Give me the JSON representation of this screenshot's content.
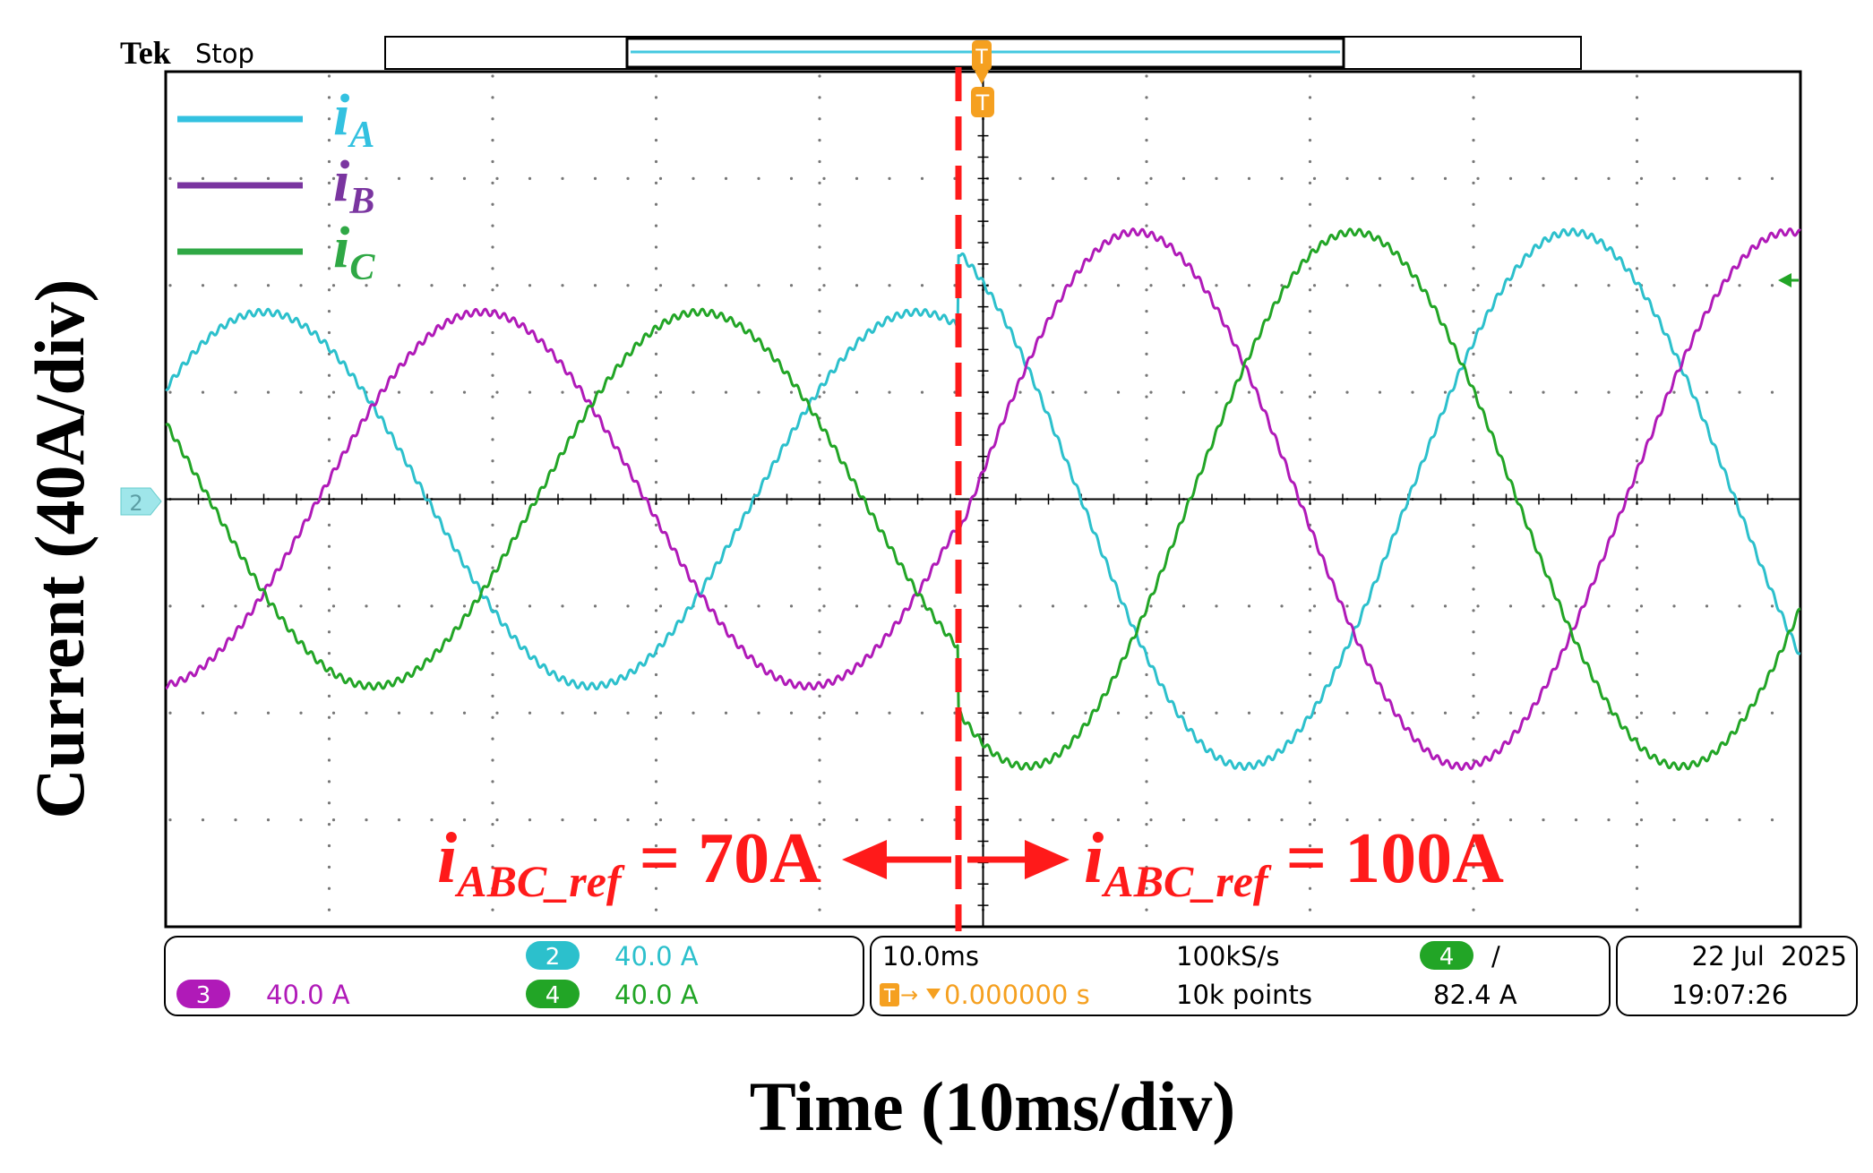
{
  "header": {
    "brand": "Tek",
    "status": "Stop"
  },
  "labels": {
    "y_axis": "Current (40A/div)",
    "x_axis": "Time (10ms/div)",
    "left_ref_main": "i",
    "left_ref_sub": "ABC_ref",
    "left_ref_value": " = 70A",
    "right_ref_main": "i",
    "right_ref_sub": "ABC_ref",
    "right_ref_value": " = 100A"
  },
  "legend": [
    {
      "main": "i",
      "sub": "A",
      "color": "#33c1e0"
    },
    {
      "main": "i",
      "sub": "B",
      "color": "#7a35a0"
    },
    {
      "main": "i",
      "sub": "C",
      "color": "#2fa845"
    }
  ],
  "markers": {
    "ch2_marker": "2",
    "trigger_marker": "T"
  },
  "status_panel": {
    "ch2_badge": "2",
    "ch2_scale": "40.0 A",
    "ch3_badge": "3",
    "ch3_scale": "40.0 A",
    "ch4_badge": "4",
    "ch4_scale": "40.0 A",
    "timebase": "10.0ms",
    "trigger_pos_icon": "T",
    "trigger_pos": "0.000000 s",
    "sample_rate": "100kS/s",
    "record_length": "10k points",
    "trig_badge": "4",
    "trig_slope": "/",
    "trig_level": "82.4 A",
    "date": "22 Jul  2025",
    "time": "19:07:26"
  },
  "colors": {
    "ch2": "#2cc0cc",
    "ch3": "#b01ab8",
    "ch4": "#22a526",
    "annotation": "#ff1a1a",
    "trigger": "#f5a020"
  },
  "chart_data": {
    "type": "line",
    "title": "",
    "xlabel": "Time (10ms/div)",
    "ylabel": "Current (40A/div)",
    "xlim": [
      -50,
      50
    ],
    "ylim": [
      -160,
      160
    ],
    "x_unit": "ms",
    "y_unit": "A",
    "step_time": -1.5,
    "frequency_hz": 25,
    "series": [
      {
        "name": "iA",
        "color": "#2cc0cc",
        "amplitude_before": 70,
        "amplitude_after": 100,
        "phase_deg": 0
      },
      {
        "name": "iB",
        "color": "#b01ab8",
        "amplitude_before": 70,
        "amplitude_after": 100,
        "phase_deg": -120
      },
      {
        "name": "iC",
        "color": "#22a526",
        "amplitude_before": 70,
        "amplitude_after": 100,
        "phase_deg": 120
      }
    ],
    "annotations": [
      "iABC_ref = 70A",
      "iABC_ref = 100A"
    ]
  }
}
